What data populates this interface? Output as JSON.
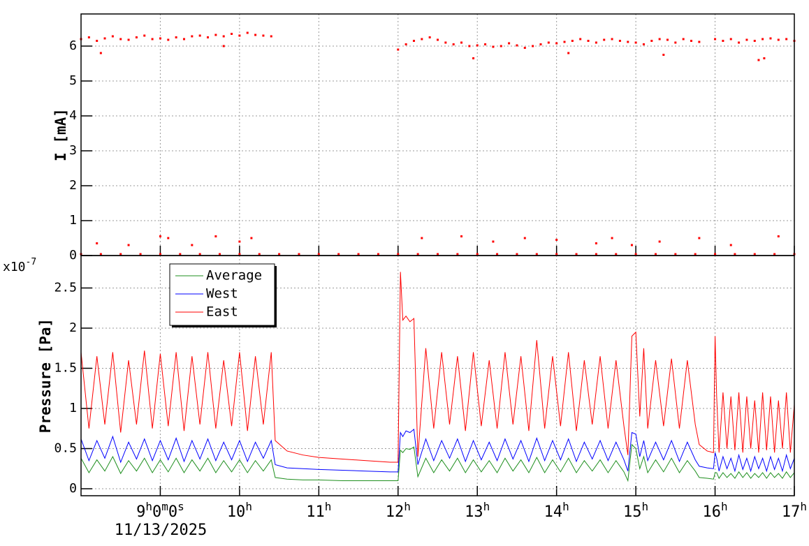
{
  "chart_data": [
    {
      "type": "scatter",
      "ylabel": "I [mA]",
      "color": "#ff0000",
      "grid": true,
      "xlim": [
        8,
        17
      ],
      "ylim": [
        0,
        6.92
      ],
      "yticks": [
        0,
        1,
        2,
        3,
        4,
        5,
        6
      ],
      "x": [
        8,
        8.1,
        8.2,
        8.3,
        8.4,
        8.5,
        8.6,
        8.7,
        8.8,
        8.9,
        9,
        9.1,
        9.2,
        9.3,
        9.4,
        9.5,
        9.6,
        9.7,
        9.8,
        9.9,
        10,
        10.1,
        10.2,
        10.3,
        10.4,
        12,
        12.1,
        12.2,
        12.3,
        12.4,
        12.5,
        12.6,
        12.7,
        12.8,
        12.9,
        13,
        13.1,
        13.2,
        13.3,
        13.4,
        13.5,
        13.6,
        13.7,
        13.8,
        13.9,
        14,
        14.1,
        14.2,
        14.3,
        14.4,
        14.5,
        14.6,
        14.7,
        14.8,
        14.9,
        15,
        15.1,
        15.2,
        15.3,
        15.4,
        15.5,
        15.6,
        15.7,
        15.8,
        16,
        16.1,
        16.2,
        16.3,
        16.4,
        16.5,
        16.6,
        16.7,
        16.8,
        16.9,
        17,
        8.25,
        9.8,
        12.95,
        14.15,
        15.35,
        16.55,
        16.62,
        8,
        8.25,
        8.5,
        8.75,
        9,
        9.25,
        9.5,
        9.75,
        10,
        10.25,
        10.5,
        10.75,
        11,
        11.25,
        11.5,
        11.75,
        12,
        12.25,
        12.5,
        12.75,
        13,
        13.25,
        13.5,
        13.75,
        14,
        14.25,
        14.5,
        14.75,
        15,
        15.25,
        15.5,
        15.75,
        16,
        16.25,
        16.5,
        16.75,
        17,
        8.2,
        8.6,
        9,
        9.1,
        9.4,
        9.7,
        10,
        10.15,
        12.3,
        12.8,
        13.2,
        13.6,
        14,
        14.5,
        14.7,
        14.95,
        15.3,
        15.8,
        16.2,
        16.8
      ],
      "values": [
        6.2,
        6.25,
        6.15,
        6.22,
        6.28,
        6.2,
        6.18,
        6.25,
        6.3,
        6.2,
        6.22,
        6.18,
        6.25,
        6.2,
        6.28,
        6.3,
        6.25,
        6.32,
        6.28,
        6.35,
        6.3,
        6.38,
        6.32,
        6.3,
        6.28,
        5.9,
        6.05,
        6.15,
        6.2,
        6.25,
        6.18,
        6.1,
        6.05,
        6.1,
        6.0,
        6.02,
        6.05,
        5.98,
        6.0,
        6.08,
        6.02,
        5.95,
        6.0,
        6.05,
        6.1,
        6.08,
        6.12,
        6.15,
        6.2,
        6.15,
        6.1,
        6.18,
        6.2,
        6.15,
        6.12,
        6.1,
        6.05,
        6.15,
        6.2,
        6.18,
        6.1,
        6.2,
        6.15,
        6.12,
        6.2,
        6.15,
        6.2,
        6.1,
        6.18,
        6.15,
        6.2,
        6.22,
        6.18,
        6.2,
        6.15,
        5.8,
        6.0,
        5.65,
        5.8,
        5.75,
        5.6,
        5.65,
        0.04,
        0.04,
        0.04,
        0.04,
        0.04,
        0.04,
        0.04,
        0.04,
        0.04,
        0.04,
        0.04,
        0.04,
        0.04,
        0.04,
        0.04,
        0.04,
        0.04,
        0.04,
        0.04,
        0.04,
        0.04,
        0.04,
        0.04,
        0.04,
        0.04,
        0.04,
        0.04,
        0.04,
        0.04,
        0.04,
        0.04,
        0.04,
        0.04,
        0.04,
        0.04,
        0.04,
        0.04,
        0.35,
        0.3,
        0.55,
        0.5,
        0.3,
        0.55,
        0.4,
        0.5,
        0.5,
        0.55,
        0.4,
        0.5,
        0.45,
        0.35,
        0.5,
        0.3,
        0.4,
        0.5,
        0.3,
        0.55
      ]
    },
    {
      "type": "line",
      "ylabel": "Pressure [Pa]",
      "multiplier": {
        "base": "x10",
        "exponent": "-7"
      },
      "xlabel": "11/13/2025",
      "grid": true,
      "legend": "upper left",
      "xlim": [
        8,
        17
      ],
      "ylim": [
        -0.087,
        2.904
      ],
      "yticks": [
        0,
        0.5,
        1,
        1.5,
        2,
        2.5
      ],
      "xticks": [
        {
          "value": 9,
          "label": "9h0m0s"
        },
        {
          "value": 10,
          "label": "10h"
        },
        {
          "value": 11,
          "label": "11h"
        },
        {
          "value": 12,
          "label": "12h"
        },
        {
          "value": 13,
          "label": "13h"
        },
        {
          "value": 14,
          "label": "14h"
        },
        {
          "value": 15,
          "label": "15h"
        },
        {
          "value": 16,
          "label": "16h"
        },
        {
          "value": 17,
          "label": "17h"
        }
      ],
      "x": [
        8,
        8.1,
        8.2,
        8.3,
        8.4,
        8.5,
        8.6,
        8.7,
        8.8,
        8.9,
        9,
        9.1,
        9.2,
        9.3,
        9.4,
        9.5,
        9.6,
        9.7,
        9.8,
        9.9,
        10,
        10.1,
        10.2,
        10.3,
        10.4,
        10.45,
        10.6,
        10.8,
        11,
        11.3,
        11.6,
        11.9,
        12,
        12.03,
        12.06,
        12.1,
        12.15,
        12.2,
        12.25,
        12.35,
        12.45,
        12.55,
        12.65,
        12.75,
        12.85,
        12.95,
        13.05,
        13.15,
        13.25,
        13.35,
        13.45,
        13.55,
        13.65,
        13.75,
        13.85,
        13.95,
        14.05,
        14.15,
        14.25,
        14.35,
        14.45,
        14.55,
        14.65,
        14.75,
        14.85,
        14.9,
        14.95,
        15,
        15.05,
        15.1,
        15.15,
        15.25,
        15.35,
        15.45,
        15.55,
        15.65,
        15.75,
        15.8,
        15.9,
        15.98,
        16,
        16.02,
        16.05,
        16.1,
        16.15,
        16.2,
        16.25,
        16.3,
        16.35,
        16.4,
        16.45,
        16.5,
        16.55,
        16.6,
        16.65,
        16.7,
        16.75,
        16.8,
        16.85,
        16.9,
        16.95,
        17
      ],
      "series": [
        {
          "name": "Average",
          "color": "#1f8f1f",
          "values": [
            0.38,
            0.2,
            0.36,
            0.22,
            0.4,
            0.19,
            0.35,
            0.22,
            0.38,
            0.2,
            0.36,
            0.21,
            0.38,
            0.2,
            0.36,
            0.22,
            0.38,
            0.2,
            0.35,
            0.21,
            0.36,
            0.2,
            0.35,
            0.22,
            0.36,
            0.14,
            0.12,
            0.11,
            0.11,
            0.1,
            0.1,
            0.1,
            0.1,
            0.48,
            0.45,
            0.5,
            0.49,
            0.52,
            0.15,
            0.38,
            0.2,
            0.36,
            0.22,
            0.38,
            0.2,
            0.36,
            0.21,
            0.35,
            0.2,
            0.38,
            0.22,
            0.36,
            0.2,
            0.39,
            0.2,
            0.36,
            0.21,
            0.38,
            0.2,
            0.35,
            0.22,
            0.36,
            0.2,
            0.35,
            0.21,
            0.1,
            0.55,
            0.5,
            0.25,
            0.4,
            0.2,
            0.36,
            0.21,
            0.38,
            0.2,
            0.35,
            0.22,
            0.14,
            0.13,
            0.12,
            0.2,
            0.2,
            0.13,
            0.2,
            0.14,
            0.19,
            0.13,
            0.21,
            0.14,
            0.2,
            0.13,
            0.19,
            0.14,
            0.2,
            0.13,
            0.2,
            0.14,
            0.19,
            0.13,
            0.21,
            0.14,
            0.2
          ]
        },
        {
          "name": "West",
          "color": "#0000ff",
          "values": [
            0.62,
            0.35,
            0.6,
            0.38,
            0.65,
            0.33,
            0.58,
            0.37,
            0.62,
            0.35,
            0.6,
            0.36,
            0.63,
            0.34,
            0.6,
            0.37,
            0.62,
            0.35,
            0.58,
            0.36,
            0.6,
            0.34,
            0.58,
            0.38,
            0.6,
            0.3,
            0.26,
            0.25,
            0.24,
            0.23,
            0.22,
            0.21,
            0.21,
            0.7,
            0.65,
            0.72,
            0.7,
            0.74,
            0.3,
            0.62,
            0.35,
            0.6,
            0.38,
            0.62,
            0.34,
            0.6,
            0.36,
            0.58,
            0.35,
            0.62,
            0.37,
            0.6,
            0.34,
            0.63,
            0.35,
            0.6,
            0.36,
            0.62,
            0.34,
            0.58,
            0.37,
            0.6,
            0.35,
            0.58,
            0.36,
            0.22,
            0.7,
            0.68,
            0.4,
            0.6,
            0.35,
            0.58,
            0.36,
            0.6,
            0.34,
            0.58,
            0.36,
            0.28,
            0.26,
            0.25,
            0.45,
            0.38,
            0.22,
            0.4,
            0.25,
            0.38,
            0.22,
            0.42,
            0.24,
            0.38,
            0.22,
            0.4,
            0.25,
            0.38,
            0.22,
            0.4,
            0.24,
            0.38,
            0.22,
            0.42,
            0.25,
            0.38
          ]
        },
        {
          "name": "East",
          "color": "#ff0000",
          "values": [
            1.7,
            0.75,
            1.65,
            0.8,
            1.7,
            0.7,
            1.6,
            0.8,
            1.72,
            0.75,
            1.68,
            0.78,
            1.7,
            0.72,
            1.65,
            0.8,
            1.7,
            0.75,
            1.6,
            0.78,
            1.7,
            0.72,
            1.65,
            0.8,
            1.7,
            0.6,
            0.47,
            0.42,
            0.39,
            0.37,
            0.35,
            0.33,
            0.33,
            2.7,
            2.1,
            2.15,
            2.08,
            2.12,
            0.4,
            1.75,
            0.75,
            1.7,
            0.8,
            1.65,
            0.72,
            1.7,
            0.78,
            1.6,
            0.75,
            1.7,
            0.8,
            1.65,
            0.72,
            1.85,
            0.75,
            1.65,
            0.78,
            1.7,
            0.72,
            1.6,
            0.8,
            1.65,
            0.75,
            1.6,
            0.78,
            0.42,
            1.9,
            1.95,
            0.9,
            1.75,
            0.75,
            1.6,
            0.78,
            1.62,
            0.75,
            1.6,
            0.8,
            0.55,
            0.47,
            0.45,
            1.9,
            1.15,
            0.45,
            1.2,
            0.5,
            1.15,
            0.48,
            1.2,
            0.45,
            1.15,
            0.5,
            1.1,
            0.45,
            1.2,
            0.48,
            1.15,
            0.45,
            1.1,
            0.5,
            1.2,
            0.45,
            1.05
          ]
        }
      ]
    }
  ]
}
